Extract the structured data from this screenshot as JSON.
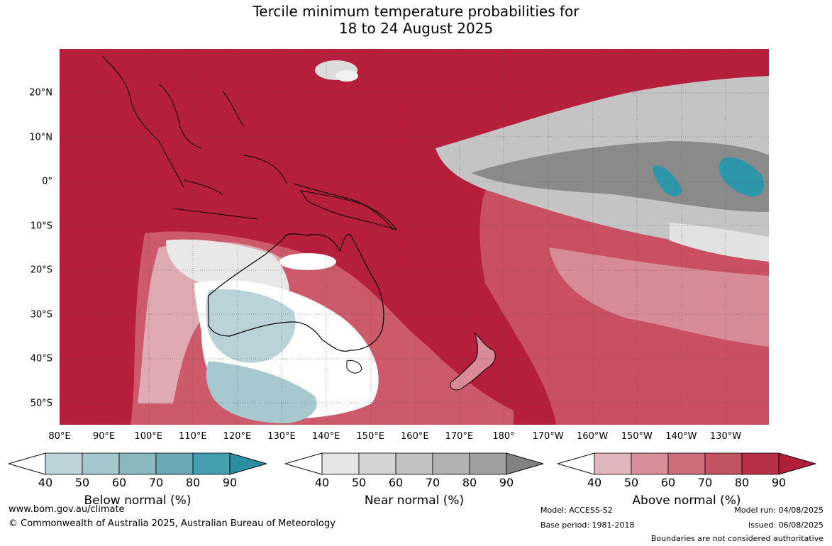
{
  "title": {
    "line1": "Tercile minimum temperature probabilities for",
    "line2": "18 to 24 August 2025"
  },
  "axes": {
    "lon_labels": [
      "80°E",
      "90°E",
      "100°E",
      "110°E",
      "120°E",
      "130°E",
      "140°E",
      "150°E",
      "160°E",
      "170°E",
      "180°",
      "170°W",
      "160°W",
      "150°W",
      "140°W",
      "130°W"
    ],
    "lat_labels": [
      "20°N",
      "10°N",
      "0°",
      "10°S",
      "20°S",
      "30°S",
      "40°S",
      "50°S"
    ]
  },
  "legends": [
    {
      "title": "Below normal (%)",
      "ticks": [
        "40",
        "50",
        "60",
        "70",
        "80",
        "90"
      ],
      "colors": [
        "#ffffff",
        "#bdd4da",
        "#a4c6cd",
        "#89b8c0",
        "#69a8b4",
        "#449fb0",
        "#2b8fa3"
      ]
    },
    {
      "title": "Near normal (%)",
      "ticks": [
        "40",
        "50",
        "60",
        "70",
        "80",
        "90"
      ],
      "colors": [
        "#ffffff",
        "#e6e6e6",
        "#d4d4d4",
        "#c2c2c2",
        "#b2b2b2",
        "#a0a0a0",
        "#828282"
      ]
    },
    {
      "title": "Above normal (%)",
      "ticks": [
        "40",
        "50",
        "60",
        "70",
        "80",
        "90"
      ],
      "colors": [
        "#ffffff",
        "#e2b6bd",
        "#d88f9a",
        "#cc6f7c",
        "#c15462",
        "#b7304a",
        "#b01e3a"
      ]
    }
  ],
  "footer": {
    "website": "www.bom.gov.au/climate",
    "copyright": "© Commonwealth of Australia 2025, Australian Bureau of Meteorology",
    "model": "Model: ACCESS-S2",
    "base_period": "Base period: 1981-2018",
    "model_run": "Model run: 04/08/2025",
    "issued": "Issued: 06/08/2025",
    "disclaimer": "Boundaries are not considered authoritative"
  }
}
